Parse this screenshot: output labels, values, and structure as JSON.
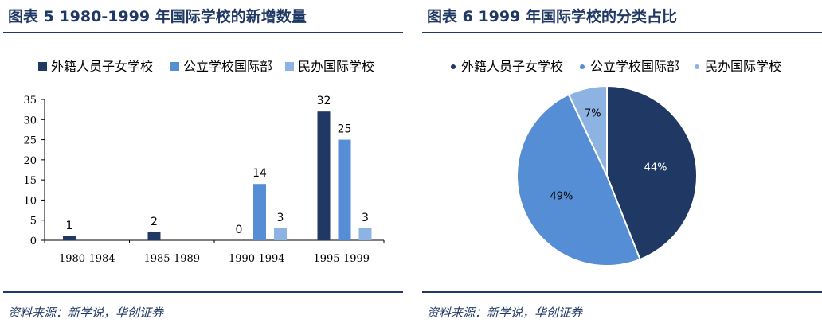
{
  "left": {
    "title": "图表  5   1980-1999 年国际学校的新增数量",
    "source": "资料来源：新学说，华创证券"
  },
  "right": {
    "title": "图表    6 1999 年国际学校的分类占比",
    "source": "资料来源：新学说，华创证券"
  },
  "chart_data": [
    {
      "type": "bar",
      "title": "1980-1999 年国际学校的新增数量",
      "categories": [
        "1980-1984",
        "1985-1989",
        "1990-1994",
        "1995-1999"
      ],
      "series": [
        {
          "name": "外籍人员子女学校",
          "color": "#1f3864",
          "values": [
            1,
            2,
            0,
            32
          ],
          "labels": [
            "1",
            "2",
            "0",
            "32"
          ]
        },
        {
          "name": "公立学校国际部",
          "color": "#558ed5",
          "values": [
            0,
            0,
            14,
            25
          ],
          "labels": [
            "",
            "",
            "14",
            "25"
          ]
        },
        {
          "name": "民办国际学校",
          "color": "#8db3e2",
          "values": [
            0,
            0,
            3,
            3
          ],
          "labels": [
            "",
            "",
            "3",
            "3"
          ]
        }
      ],
      "ylim": [
        0,
        35
      ],
      "yticks": [
        "0",
        "5",
        "10",
        "15",
        "20",
        "25",
        "30",
        "35"
      ],
      "xlabel": "",
      "ylabel": "",
      "grid": false,
      "legend": "top"
    },
    {
      "type": "pie",
      "title": "1999 年国际学校的分类占比",
      "slices": [
        {
          "name": "外籍人员子女学校",
          "value": 44,
          "label": "44%",
          "color": "#1f3864",
          "label_color": "#ffffff"
        },
        {
          "name": "公立学校国际部",
          "value": 49,
          "label": "49%",
          "color": "#558ed5",
          "label_color": "#000000"
        },
        {
          "name": "民办国际学校",
          "value": 7,
          "label": "7%",
          "color": "#8db3e2",
          "label_color": "#000000"
        }
      ],
      "legend": "top"
    }
  ]
}
